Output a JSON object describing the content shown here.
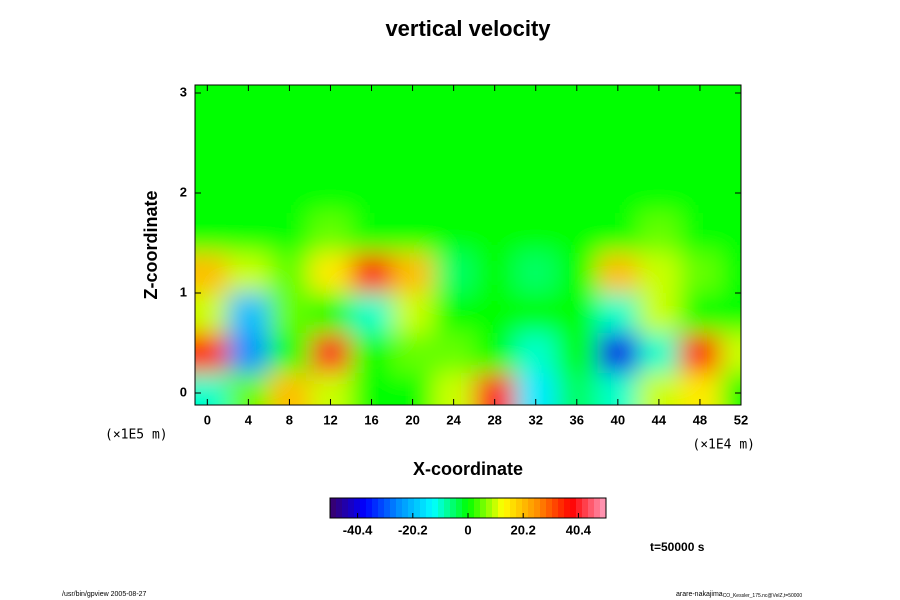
{
  "chart_data": {
    "type": "heatmap",
    "title": "vertical velocity",
    "xlabel": "X-coordinate",
    "ylabel": "Z-coordinate",
    "xunit": "(×1E4 m)",
    "yunit": "(×1E5 m)",
    "xlim": [
      -1.2,
      52
    ],
    "ylim": [
      -0.12,
      3.08
    ],
    "xticks": [
      0,
      4,
      8,
      12,
      16,
      20,
      24,
      28,
      32,
      36,
      40,
      44,
      48,
      52
    ],
    "yticks": [
      0,
      1,
      2,
      3
    ],
    "x": [
      0,
      4,
      8,
      12,
      16,
      20,
      24,
      28,
      32,
      36,
      40,
      44,
      48,
      52
    ],
    "y": [
      0,
      0.4,
      0.8,
      1.2,
      1.6,
      2.0,
      2.4,
      2.8
    ],
    "z": [
      [
        -10,
        5,
        20,
        10,
        0,
        0,
        10,
        40,
        -15,
        -5,
        -10,
        10,
        15,
        0
      ],
      [
        35,
        -25,
        0,
        40,
        0,
        5,
        5,
        0,
        -10,
        0,
        -40,
        -10,
        35,
        10
      ],
      [
        10,
        -20,
        5,
        0,
        -10,
        10,
        0,
        0,
        0,
        0,
        -10,
        10,
        0,
        0
      ],
      [
        20,
        10,
        5,
        15,
        35,
        20,
        -5,
        0,
        -5,
        0,
        20,
        10,
        5,
        0
      ],
      [
        0,
        0,
        0,
        5,
        0,
        0,
        0,
        0,
        0,
        0,
        0,
        5,
        0,
        0
      ],
      [
        0,
        0,
        0,
        0,
        0,
        0,
        0,
        0,
        0,
        0,
        0,
        0,
        0,
        0
      ],
      [
        0,
        0,
        0,
        0,
        0,
        0,
        0,
        0,
        0,
        0,
        0,
        0,
        0,
        0
      ],
      [
        0,
        0,
        0,
        0,
        0,
        0,
        0,
        0,
        0,
        0,
        0,
        0,
        0,
        0
      ]
    ],
    "clim": [
      -50.5,
      50.5
    ],
    "cticks": [
      -40.4,
      -20.2,
      0,
      20.2,
      40.4
    ],
    "colormap": [
      "#3a0068",
      "#0000ff",
      "#0090ff",
      "#00ffff",
      "#00ff00",
      "#ffff00",
      "#ff9000",
      "#ff0000",
      "#ffa0c0"
    ],
    "annotation": "t=50000 s",
    "footer_left": "/usr/bin/gpview 2005-08-27",
    "footer_right": "arare-nakajima",
    "footer_right_sub": "CO_Kessler_175.nc@VelZ,t=50000"
  }
}
